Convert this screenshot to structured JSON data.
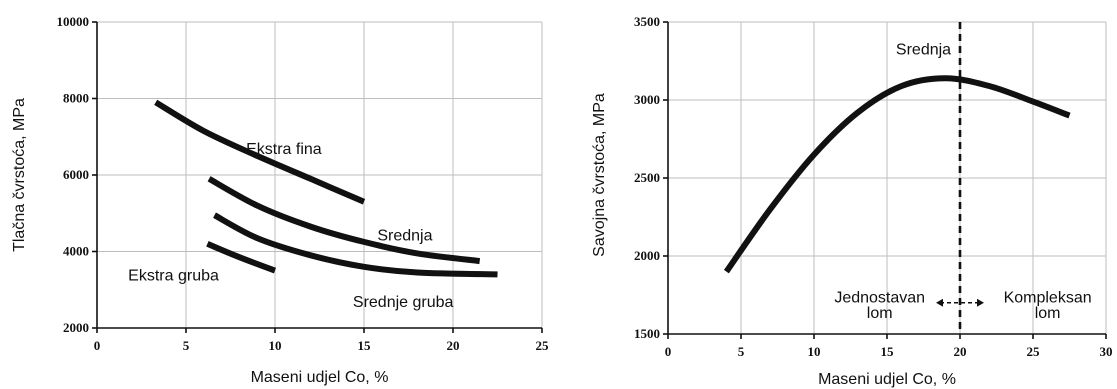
{
  "chart_data": [
    {
      "type": "line",
      "xlabel": "Maseni udjel Co, %",
      "ylabel": "Tlačna čvrstoća, MPa",
      "xlim": [
        0,
        25
      ],
      "ylim": [
        2000,
        10000
      ],
      "x_ticks": [
        "0",
        "5",
        "10",
        "15",
        "20",
        "25"
      ],
      "y_ticks": [
        "2000",
        "4000",
        "6000",
        "8000",
        "10000"
      ],
      "grid": true,
      "series": [
        {
          "name": "Ekstra fina",
          "x": [
            3.3,
            6,
            9,
            12,
            15
          ],
          "y": [
            7900,
            7150,
            6500,
            5900,
            5300
          ]
        },
        {
          "name": "Srednja",
          "x": [
            6.3,
            9,
            12,
            15,
            18,
            21.5
          ],
          "y": [
            5900,
            5200,
            4650,
            4250,
            3950,
            3750
          ]
        },
        {
          "name": "Srednje gruba",
          "x": [
            6.6,
            9,
            12,
            15,
            18,
            22.5
          ],
          "y": [
            4950,
            4350,
            3900,
            3600,
            3450,
            3400
          ]
        },
        {
          "name": "Ekstra gruba",
          "x": [
            6.2,
            8,
            10
          ],
          "y": [
            4200,
            3850,
            3500
          ]
        }
      ],
      "annotations": [
        {
          "text": "Ekstra fina",
          "x": 10.5,
          "y": 6700
        },
        {
          "text": "Srednja",
          "x": 17.3,
          "y": 4450
        },
        {
          "text": "Srednje gruba",
          "x": 17.2,
          "y": 2700
        },
        {
          "text": "Ekstra gruba",
          "x": 4.3,
          "y": 3400
        }
      ]
    },
    {
      "type": "line",
      "xlabel": "Maseni udjel Co, %",
      "ylabel": "Savojna čvrstoća, MPa",
      "xlim": [
        0,
        30
      ],
      "ylim": [
        1500,
        3500
      ],
      "x_ticks": [
        "0",
        "5",
        "10",
        "15",
        "20",
        "25",
        "30"
      ],
      "y_ticks": [
        "1500",
        "2000",
        "2500",
        "3000",
        "3500"
      ],
      "grid": true,
      "series": [
        {
          "x": [
            4,
            7,
            10,
            13,
            16,
            19,
            22,
            25,
            27.5
          ],
          "y": [
            1900,
            2300,
            2650,
            2920,
            3090,
            3140,
            3090,
            2990,
            2900
          ]
        }
      ],
      "vertical_line": {
        "x": 20,
        "style": "dashed"
      },
      "annotations": [
        {
          "text": "Srednja",
          "x": 17.5,
          "y": 3330
        },
        {
          "text": "Jednostavan",
          "x": 14.5,
          "y": 1740
        },
        {
          "text": "lom",
          "x": 14.5,
          "y": 1640
        },
        {
          "text": "Kompleksan",
          "x": 26,
          "y": 1740
        },
        {
          "text": "lom",
          "x": 26,
          "y": 1640
        }
      ]
    }
  ]
}
